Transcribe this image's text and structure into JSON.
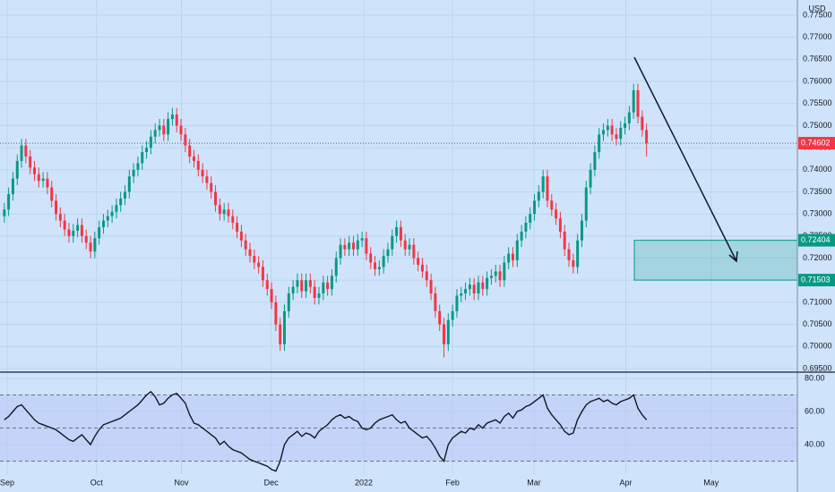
{
  "chart_data": [
    {
      "type": "candlestick",
      "y_unit": "USD",
      "open": [
        0.7295,
        0.731,
        0.7345,
        0.738,
        0.742,
        0.7455,
        0.743,
        0.7405,
        0.739,
        0.7375,
        0.738,
        0.736,
        0.733,
        0.73,
        0.7285,
        0.7265,
        0.725,
        0.7262,
        0.7275,
        0.725,
        0.7235,
        0.7215,
        0.7245,
        0.727,
        0.7285,
        0.7295,
        0.7305,
        0.732,
        0.7335,
        0.735,
        0.7385,
        0.74,
        0.7415,
        0.744,
        0.745,
        0.7475,
        0.749,
        0.75,
        0.748,
        0.7515,
        0.7525,
        0.75,
        0.748,
        0.7455,
        0.743,
        0.742,
        0.74,
        0.7385,
        0.737,
        0.735,
        0.732,
        0.73,
        0.731,
        0.7295,
        0.728,
        0.726,
        0.724,
        0.722,
        0.7205,
        0.719,
        0.718,
        0.715,
        0.713,
        0.71,
        0.705,
        0.7005,
        0.708,
        0.712,
        0.7135,
        0.715,
        0.7125,
        0.715,
        0.7135,
        0.711,
        0.712,
        0.7145,
        0.713,
        0.716,
        0.72,
        0.723,
        0.722,
        0.7235,
        0.722,
        0.724,
        0.7245,
        0.721,
        0.719,
        0.7175,
        0.718,
        0.7205,
        0.722,
        0.725,
        0.727,
        0.724,
        0.722,
        0.723,
        0.72,
        0.7185,
        0.717,
        0.715,
        0.712,
        0.708,
        0.705,
        0.7005,
        0.706,
        0.708,
        0.7115,
        0.712,
        0.713,
        0.714,
        0.712,
        0.7145,
        0.713,
        0.7155,
        0.716,
        0.717,
        0.715,
        0.719,
        0.721,
        0.7195,
        0.724,
        0.726,
        0.728,
        0.73,
        0.733,
        0.735,
        0.7385,
        0.733,
        0.731,
        0.729,
        0.726,
        0.722,
        0.7195,
        0.718,
        0.724,
        0.7285,
        0.736,
        0.74,
        0.744,
        0.748,
        0.749,
        0.75,
        0.748,
        0.747,
        0.7495,
        0.7505,
        0.753,
        0.758,
        0.752,
        0.749
      ],
      "high": [
        0.7325,
        0.736,
        0.7395,
        0.7435,
        0.747,
        0.747,
        0.7445,
        0.742,
        0.7405,
        0.7395,
        0.7395,
        0.7375,
        0.7345,
        0.7315,
        0.73,
        0.728,
        0.7277,
        0.729,
        0.729,
        0.7265,
        0.725,
        0.726,
        0.7285,
        0.73,
        0.731,
        0.732,
        0.7335,
        0.735,
        0.7365,
        0.74,
        0.7415,
        0.743,
        0.7455,
        0.7465,
        0.749,
        0.7505,
        0.7515,
        0.7515,
        0.753,
        0.754,
        0.754,
        0.7515,
        0.7495,
        0.747,
        0.7445,
        0.7435,
        0.7415,
        0.74,
        0.7385,
        0.7365,
        0.7335,
        0.7325,
        0.7325,
        0.731,
        0.7295,
        0.7275,
        0.7255,
        0.7235,
        0.722,
        0.7205,
        0.7195,
        0.7165,
        0.7145,
        0.7115,
        0.7065,
        0.7095,
        0.7135,
        0.715,
        0.7165,
        0.7165,
        0.7165,
        0.7165,
        0.715,
        0.7135,
        0.716,
        0.716,
        0.7175,
        0.7215,
        0.7245,
        0.7245,
        0.725,
        0.725,
        0.7255,
        0.726,
        0.726,
        0.7225,
        0.7205,
        0.7195,
        0.722,
        0.7235,
        0.7265,
        0.7285,
        0.7285,
        0.7255,
        0.7245,
        0.7245,
        0.7215,
        0.72,
        0.7185,
        0.7165,
        0.7135,
        0.7095,
        0.7065,
        0.7075,
        0.7095,
        0.713,
        0.7135,
        0.7145,
        0.7155,
        0.7155,
        0.716,
        0.716,
        0.717,
        0.7175,
        0.7185,
        0.7185,
        0.7205,
        0.7225,
        0.7225,
        0.7255,
        0.7275,
        0.7295,
        0.7315,
        0.7345,
        0.7365,
        0.74,
        0.74,
        0.7345,
        0.7325,
        0.7305,
        0.7275,
        0.7235,
        0.721,
        0.7255,
        0.73,
        0.7375,
        0.7415,
        0.7455,
        0.7495,
        0.7505,
        0.7515,
        0.7515,
        0.7495,
        0.751,
        0.752,
        0.7545,
        0.7595,
        0.7595,
        0.7535,
        0.7505
      ],
      "low": [
        0.728,
        0.7295,
        0.733,
        0.7365,
        0.7405,
        0.7415,
        0.739,
        0.7375,
        0.736,
        0.736,
        0.7345,
        0.7315,
        0.7285,
        0.727,
        0.725,
        0.7235,
        0.7235,
        0.7247,
        0.7235,
        0.722,
        0.72,
        0.72,
        0.723,
        0.7255,
        0.727,
        0.728,
        0.729,
        0.7305,
        0.732,
        0.7335,
        0.737,
        0.7385,
        0.74,
        0.7425,
        0.7435,
        0.746,
        0.7475,
        0.7465,
        0.7465,
        0.75,
        0.7485,
        0.7465,
        0.744,
        0.7415,
        0.7405,
        0.7385,
        0.737,
        0.7355,
        0.7335,
        0.7305,
        0.7285,
        0.7285,
        0.728,
        0.7265,
        0.7245,
        0.7225,
        0.7205,
        0.719,
        0.7175,
        0.7165,
        0.7135,
        0.7115,
        0.7085,
        0.7035,
        0.699,
        0.699,
        0.7065,
        0.7105,
        0.712,
        0.711,
        0.711,
        0.712,
        0.7095,
        0.7095,
        0.7105,
        0.7115,
        0.7115,
        0.7145,
        0.7185,
        0.7205,
        0.7205,
        0.7205,
        0.7205,
        0.7225,
        0.7195,
        0.7175,
        0.716,
        0.716,
        0.7165,
        0.719,
        0.7205,
        0.7235,
        0.7225,
        0.7205,
        0.7205,
        0.7185,
        0.717,
        0.7155,
        0.7135,
        0.7105,
        0.7065,
        0.7035,
        0.6975,
        0.699,
        0.7045,
        0.7065,
        0.71,
        0.7105,
        0.7115,
        0.7105,
        0.7105,
        0.7115,
        0.7115,
        0.714,
        0.7145,
        0.7135,
        0.7135,
        0.7175,
        0.718,
        0.718,
        0.7225,
        0.7245,
        0.7265,
        0.7285,
        0.7315,
        0.7335,
        0.7315,
        0.7295,
        0.7275,
        0.7245,
        0.7205,
        0.718,
        0.7165,
        0.7165,
        0.7225,
        0.727,
        0.7345,
        0.7385,
        0.7425,
        0.7465,
        0.7475,
        0.7465,
        0.7455,
        0.7455,
        0.748,
        0.749,
        0.7515,
        0.7505,
        0.7475,
        0.743
      ],
      "close": [
        0.731,
        0.7345,
        0.738,
        0.742,
        0.7455,
        0.743,
        0.7405,
        0.739,
        0.7375,
        0.738,
        0.736,
        0.733,
        0.73,
        0.7285,
        0.7265,
        0.725,
        0.7262,
        0.7275,
        0.725,
        0.7235,
        0.7215,
        0.7245,
        0.727,
        0.7285,
        0.7295,
        0.7305,
        0.732,
        0.7335,
        0.735,
        0.7385,
        0.74,
        0.7415,
        0.744,
        0.745,
        0.7475,
        0.749,
        0.75,
        0.748,
        0.7515,
        0.7525,
        0.75,
        0.748,
        0.7455,
        0.743,
        0.742,
        0.74,
        0.7385,
        0.737,
        0.735,
        0.732,
        0.73,
        0.731,
        0.7295,
        0.728,
        0.726,
        0.724,
        0.722,
        0.7205,
        0.719,
        0.718,
        0.715,
        0.713,
        0.71,
        0.705,
        0.7005,
        0.708,
        0.712,
        0.7135,
        0.715,
        0.7125,
        0.715,
        0.7135,
        0.711,
        0.712,
        0.7145,
        0.713,
        0.716,
        0.72,
        0.723,
        0.722,
        0.7235,
        0.722,
        0.724,
        0.7245,
        0.721,
        0.719,
        0.7175,
        0.718,
        0.7205,
        0.722,
        0.725,
        0.727,
        0.724,
        0.722,
        0.723,
        0.72,
        0.7185,
        0.717,
        0.715,
        0.712,
        0.708,
        0.705,
        0.7005,
        0.706,
        0.708,
        0.7115,
        0.712,
        0.713,
        0.714,
        0.712,
        0.7145,
        0.713,
        0.7155,
        0.716,
        0.717,
        0.715,
        0.719,
        0.721,
        0.7195,
        0.724,
        0.726,
        0.728,
        0.73,
        0.733,
        0.735,
        0.7385,
        0.733,
        0.731,
        0.729,
        0.726,
        0.722,
        0.7195,
        0.718,
        0.724,
        0.7285,
        0.736,
        0.74,
        0.744,
        0.748,
        0.749,
        0.75,
        0.748,
        0.747,
        0.7495,
        0.7505,
        0.753,
        0.758,
        0.752,
        0.749,
        0.74602
      ],
      "up_color": "#089981",
      "down_color": "#f23645",
      "last_price": 0.74602,
      "zone": [
        0.72404,
        0.71503
      ],
      "zone_color": "#089981",
      "xlim": [
        -1,
        184
      ],
      "ylim": [
        0.69439,
        0.77844
      ],
      "yticks": [
        {
          "value": 0.775,
          "label": "0.77500"
        },
        {
          "value": 0.77,
          "label": "0.77000"
        },
        {
          "value": 0.765,
          "label": "0.76500"
        },
        {
          "value": 0.76,
          "label": "0.76000"
        },
        {
          "value": 0.755,
          "label": "0.75500"
        },
        {
          "value": 0.75,
          "label": "0.75000"
        },
        {
          "value": 0.745,
          "label": "0.74500"
        },
        {
          "value": 0.74,
          "label": "0.74000"
        },
        {
          "value": 0.735,
          "label": "0.73500"
        },
        {
          "value": 0.73,
          "label": "0.73000"
        },
        {
          "value": 0.725,
          "label": "0.72500"
        },
        {
          "value": 0.72,
          "label": "0.72000"
        },
        {
          "value": 0.715,
          "label": "0.71500"
        },
        {
          "value": 0.71,
          "label": "0.71000"
        },
        {
          "value": 0.705,
          "label": "0.70500"
        },
        {
          "value": 0.7,
          "label": "0.70000"
        },
        {
          "value": 0.695,
          "label": "0.69500"
        }
      ],
      "grid": true
    },
    {
      "type": "line",
      "values": [
        55,
        57,
        60,
        63,
        64,
        61,
        58,
        55,
        53,
        52,
        51,
        50,
        49,
        47,
        45,
        43,
        42,
        44,
        46,
        43,
        40,
        45,
        49,
        52,
        53,
        54,
        55,
        56,
        58,
        60,
        62,
        64,
        67,
        70,
        72,
        69,
        64,
        65,
        68,
        70,
        71,
        68,
        65,
        58,
        53,
        52,
        50,
        48,
        46,
        44,
        40,
        42,
        39,
        37,
        36,
        35,
        33,
        31,
        30,
        29,
        28,
        27,
        25,
        24,
        30,
        40,
        44,
        46,
        48,
        45,
        47,
        46,
        44,
        48,
        50,
        52,
        55,
        57,
        58,
        56,
        57,
        55,
        54,
        50,
        49,
        50,
        53,
        55,
        56,
        57,
        58,
        55,
        53,
        54,
        50,
        48,
        46,
        44,
        45,
        42,
        38,
        33,
        30,
        40,
        44,
        46,
        48,
        47,
        50,
        49,
        52,
        50,
        53,
        54,
        55,
        53,
        57,
        59,
        56,
        60,
        61,
        63,
        64,
        66,
        68,
        70,
        62,
        58,
        55,
        52,
        48,
        46,
        47,
        55,
        60,
        64,
        66,
        67,
        68,
        66,
        67,
        65,
        64,
        66,
        67,
        68,
        70,
        62,
        58,
        55
      ],
      "color": "#131722",
      "band": [
        70,
        30
      ],
      "midline": 50,
      "band_color": "#b9c6f5",
      "xlim": [
        -1,
        184
      ],
      "ylim": [
        22.2,
        82.7
      ],
      "yticks": [
        {
          "value": 80,
          "label": "80.00"
        },
        {
          "value": 60,
          "label": "60.00"
        },
        {
          "value": 40,
          "label": "40.00"
        }
      ],
      "xticks": [
        {
          "value": 0.66,
          "label": "Sep"
        },
        {
          "value": 21.4,
          "label": "Oct"
        },
        {
          "value": 41.1,
          "label": "Nov"
        },
        {
          "value": 61.9,
          "label": "Dec"
        },
        {
          "value": 83.4,
          "label": "2022"
        },
        {
          "value": 104,
          "label": "Feb"
        },
        {
          "value": 122.9,
          "label": "Mar"
        },
        {
          "value": 144.2,
          "label": "Apr"
        },
        {
          "value": 164,
          "label": "May"
        }
      ],
      "grid": true
    }
  ]
}
